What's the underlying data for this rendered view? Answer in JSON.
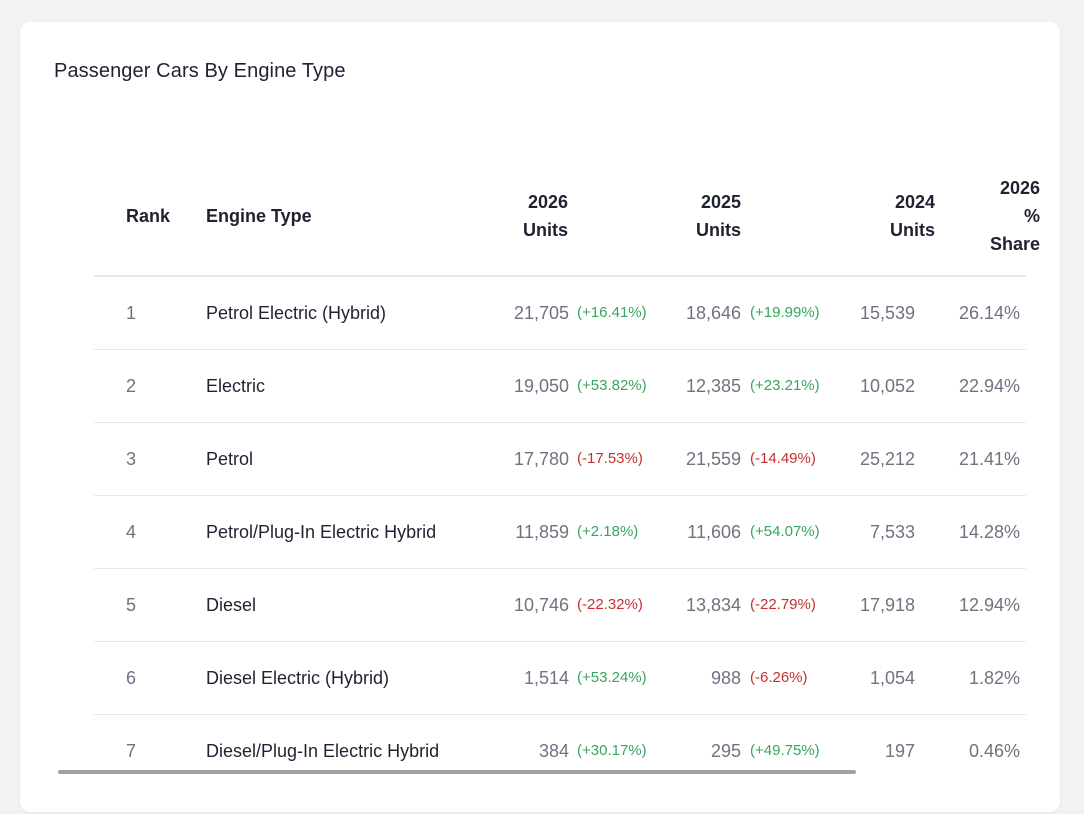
{
  "card": {
    "title": "Passenger Cars By Engine Type"
  },
  "table": {
    "headers": {
      "rank": "Rank",
      "engine_type": "Engine Type",
      "y2026_line1": "2026",
      "y2026_line2": "Units",
      "y2025_line1": "2025",
      "y2025_line2": "Units",
      "y2024_line1": "2024",
      "y2024_line2": "Units",
      "share_line1": "2026",
      "share_line2": "%",
      "share_line3": "Share"
    },
    "rows": [
      {
        "rank": "1",
        "engine": "Petrol Electric (Hybrid)",
        "u2026": "21,705",
        "c2026": "(+16.41%)",
        "d2026": "up",
        "u2025": "18,646",
        "c2025": "(+19.99%)",
        "d2025": "up",
        "u2024": "15,539",
        "share": "26.14%"
      },
      {
        "rank": "2",
        "engine": "Electric",
        "u2026": "19,050",
        "c2026": "(+53.82%)",
        "d2026": "up",
        "u2025": "12,385",
        "c2025": "(+23.21%)",
        "d2025": "up",
        "u2024": "10,052",
        "share": "22.94%"
      },
      {
        "rank": "3",
        "engine": "Petrol",
        "u2026": "17,780",
        "c2026": "(-17.53%)",
        "d2026": "down",
        "u2025": "21,559",
        "c2025": "(-14.49%)",
        "d2025": "down",
        "u2024": "25,212",
        "share": "21.41%"
      },
      {
        "rank": "4",
        "engine": "Petrol/Plug-In Electric Hybrid",
        "u2026": "11,859",
        "c2026": "(+2.18%)",
        "d2026": "up",
        "u2025": "11,606",
        "c2025": "(+54.07%)",
        "d2025": "up",
        "u2024": "7,533",
        "share": "14.28%"
      },
      {
        "rank": "5",
        "engine": "Diesel",
        "u2026": "10,746",
        "c2026": "(-22.32%)",
        "d2026": "down",
        "u2025": "13,834",
        "c2025": "(-22.79%)",
        "d2025": "down",
        "u2024": "17,918",
        "share": "12.94%"
      },
      {
        "rank": "6",
        "engine": "Diesel Electric (Hybrid)",
        "u2026": "1,514",
        "c2026": "(+53.24%)",
        "d2026": "up",
        "u2025": "988",
        "c2025": "(-6.26%)",
        "d2025": "down",
        "u2024": "1,054",
        "share": "1.82%"
      },
      {
        "rank": "7",
        "engine": "Diesel/Plug-In Electric Hybrid",
        "u2026": "384",
        "c2026": "(+30.17%)",
        "d2026": "up",
        "u2025": "295",
        "c2025": "(+49.75%)",
        "d2025": "up",
        "u2024": "197",
        "share": "0.46%"
      }
    ]
  },
  "colors": {
    "positive_change": "#38a561",
    "negative_change": "#c52f2f",
    "header_text": "#1f2230",
    "muted_text": "#6f7380"
  },
  "scrollbar": {
    "horizontal_scroll_fraction": 0.0,
    "visible_fraction": 0.82
  }
}
